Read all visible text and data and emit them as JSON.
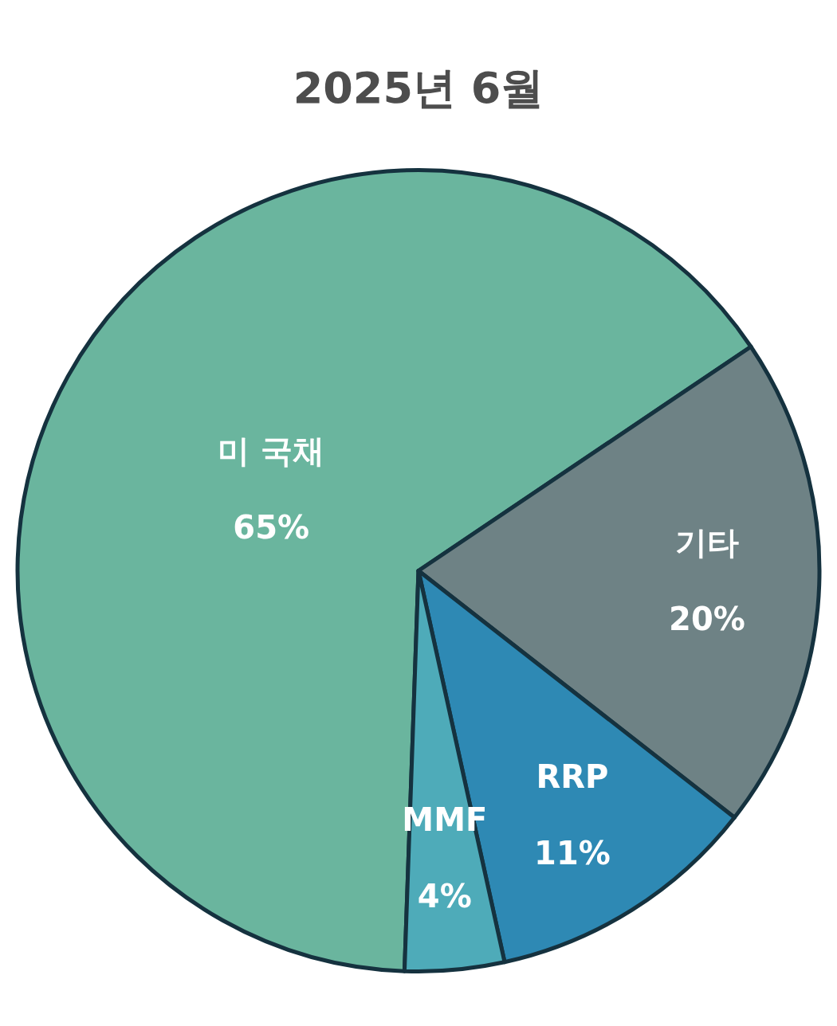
{
  "chart_data": {
    "type": "pie",
    "title": "2025년 6월",
    "categories": [
      "미 국채",
      "기타",
      "RRP",
      "MMF"
    ],
    "values": [
      65,
      20,
      11,
      4
    ],
    "colors": [
      "#6ab59e",
      "#6e8285",
      "#2e89b4",
      "#4eabb9"
    ],
    "value_labels": [
      "65%",
      "20%",
      "11%",
      "4%"
    ]
  }
}
